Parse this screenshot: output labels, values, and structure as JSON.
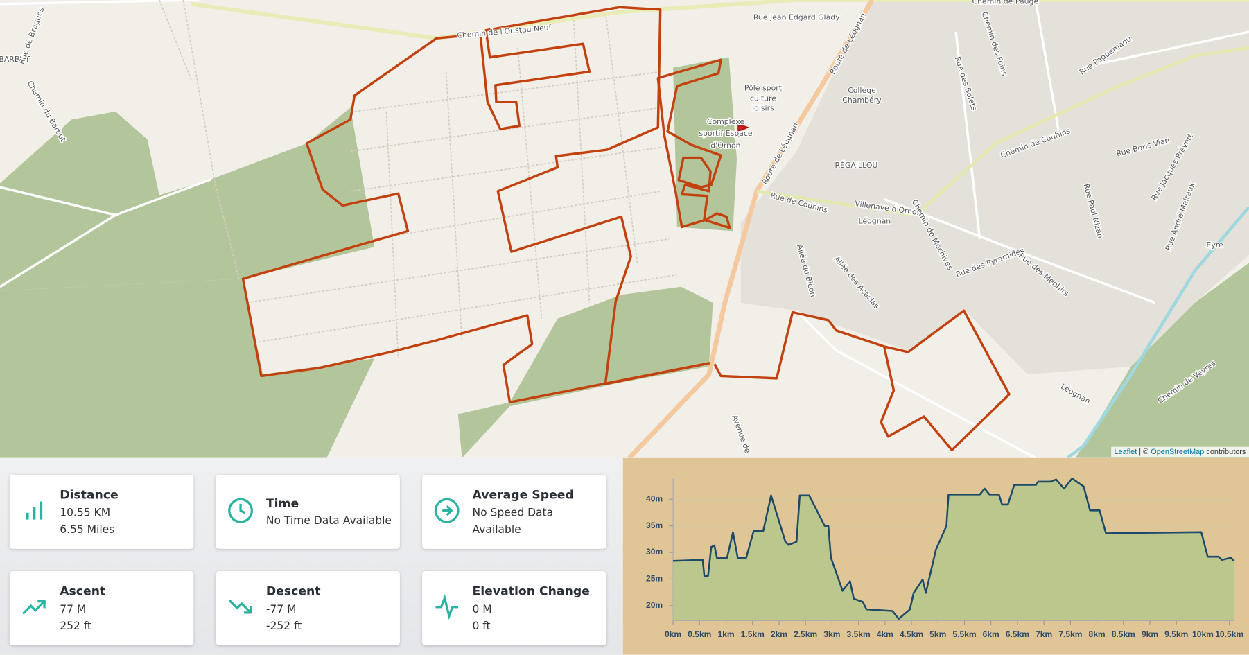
{
  "map": {
    "labels": [
      "BARBUT",
      "Rue de Bragues",
      "Chemin du Barbut",
      "Chemin de l'Oustau Neuf",
      "Rue Jean Edgard Glady",
      "Route de Léognan",
      "Pôle sport",
      "culture",
      "loisirs",
      "Collège",
      "Chambéry",
      "Complexe",
      "sportif Espace",
      "d'Ornon",
      "RÉGAILLOU",
      "Rue de Couhins",
      "Villenave-d'Ornon",
      "Léognan",
      "Chemin de Couhins",
      "Rue Boris Vian",
      "Chemin des Foins",
      "Rue des Bolets",
      "Chemin de Pauge",
      "Rue Paguemaou",
      "Rue Paul Nizan",
      "Rue Jacques Prévert",
      "Rue André Malraux",
      "Chemin de Mechives",
      "Rue des Pyramides",
      "Rue des Menhirs",
      "Allée du Bicon",
      "Allée des Acacias",
      "Chemin de Veyres",
      "Eyre",
      "Léognan",
      "Avenue de",
      "Route de Léognan"
    ],
    "attribution": {
      "leaflet": "Leaflet",
      "sep": "| ©",
      "osm": "OpenStreetMap",
      "suffix": "contributors"
    }
  },
  "stats": [
    {
      "title": "Distance",
      "lines": [
        "10.55 KM",
        "6.55 Miles"
      ]
    },
    {
      "title": "Time",
      "lines": [
        "No Time Data Available"
      ]
    },
    {
      "title": "Average Speed",
      "lines": [
        "No Speed Data Available"
      ]
    },
    {
      "title": "Ascent",
      "lines": [
        "77 M",
        "252 ft"
      ]
    },
    {
      "title": "Descent",
      "lines": [
        "-77 M",
        "-252 ft"
      ]
    },
    {
      "title": "Elevation Change",
      "lines": [
        "0 M",
        "0 ft"
      ]
    }
  ],
  "chart_data": {
    "type": "area",
    "x": [
      0,
      0.56,
      0.59,
      0.66,
      0.72,
      0.78,
      0.83,
      1.02,
      1.13,
      1.22,
      1.38,
      1.52,
      1.7,
      1.85,
      2.12,
      2.18,
      2.33,
      2.39,
      2.57,
      2.86,
      2.93,
      2.98,
      3.2,
      3.34,
      3.41,
      3.58,
      3.65,
      4.14,
      4.26,
      4.47,
      4.54,
      4.71,
      4.77,
      4.96,
      5.16,
      5.2,
      5.79,
      5.88,
      5.97,
      6.15,
      6.21,
      6.32,
      6.44,
      6.85,
      6.89,
      7.12,
      7.23,
      7.38,
      7.53,
      7.75,
      7.87,
      8.05,
      8.17,
      9.97,
      10.09,
      10.3,
      10.36,
      10.53,
      10.59
    ],
    "values": [
      28.4,
      28.6,
      25.6,
      25.6,
      31,
      31.3,
      28.9,
      29,
      33.8,
      29,
      29,
      34,
      34,
      40.7,
      32,
      31.4,
      32,
      40.7,
      40.7,
      35,
      35,
      29,
      22.8,
      24.6,
      21.3,
      20.7,
      19.3,
      19,
      17.5,
      19.3,
      22.4,
      24.9,
      22.4,
      30.5,
      35,
      40.9,
      40.9,
      42,
      40.9,
      40.9,
      39,
      39,
      42.7,
      42.7,
      43.3,
      43.3,
      43.7,
      42,
      43.9,
      42.4,
      37.9,
      37.9,
      33.6,
      33.8,
      29.2,
      29.2,
      28.6,
      29,
      28.4
    ],
    "color": "#1d4a68",
    "fill": "#b7c68b",
    "background": "#e0c597",
    "xlim": [
      0,
      10.6
    ],
    "ylim": [
      17.2,
      44
    ],
    "xticks": [
      {
        "value": 0,
        "label": "0km"
      },
      {
        "value": 0.5,
        "label": "0.5km"
      },
      {
        "value": 1,
        "label": "1km"
      },
      {
        "value": 1.5,
        "label": "1.5km"
      },
      {
        "value": 2,
        "label": "2km"
      },
      {
        "value": 2.5,
        "label": "2.5km"
      },
      {
        "value": 3,
        "label": "3km"
      },
      {
        "value": 3.5,
        "label": "3.5km"
      },
      {
        "value": 4,
        "label": "4km"
      },
      {
        "value": 4.5,
        "label": "4.5km"
      },
      {
        "value": 5,
        "label": "5km"
      },
      {
        "value": 5.5,
        "label": "5.5km"
      },
      {
        "value": 6,
        "label": "6km"
      },
      {
        "value": 6.5,
        "label": "6.5km"
      },
      {
        "value": 7,
        "label": "7km"
      },
      {
        "value": 7.5,
        "label": "7.5km"
      },
      {
        "value": 8,
        "label": "8km"
      },
      {
        "value": 8.5,
        "label": "8.5km"
      },
      {
        "value": 9,
        "label": "9km"
      },
      {
        "value": 9.5,
        "label": "9.5km"
      },
      {
        "value": 10,
        "label": "10km"
      },
      {
        "value": 10.5,
        "label": "10.5km"
      }
    ],
    "yticks": [
      {
        "value": 20,
        "label": "20m"
      },
      {
        "value": 25,
        "label": "25m"
      },
      {
        "value": 30,
        "label": "30m"
      },
      {
        "value": 35,
        "label": "35m"
      },
      {
        "value": 40,
        "label": "40m"
      }
    ],
    "grid": true
  }
}
